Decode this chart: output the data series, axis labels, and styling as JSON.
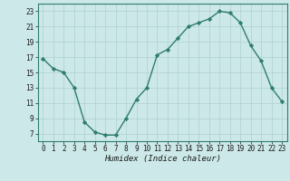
{
  "x": [
    0,
    1,
    2,
    3,
    4,
    5,
    6,
    7,
    8,
    9,
    10,
    11,
    12,
    13,
    14,
    15,
    16,
    17,
    18,
    19,
    20,
    21,
    22,
    23
  ],
  "y": [
    16.8,
    15.5,
    15.0,
    13.0,
    8.5,
    7.2,
    6.8,
    6.8,
    9.0,
    11.5,
    13.0,
    17.3,
    18.0,
    19.5,
    21.0,
    21.5,
    22.0,
    23.0,
    22.8,
    21.5,
    18.5,
    16.5,
    13.0,
    11.2
  ],
  "line_color": "#2e7d6e",
  "bg_color": "#cce8e8",
  "grid_color": "#aed0d0",
  "xlabel": "Humidex (Indice chaleur)",
  "ylim": [
    6,
    24
  ],
  "xlim": [
    -0.5,
    23.5
  ],
  "yticks": [
    7,
    9,
    11,
    13,
    15,
    17,
    19,
    21,
    23
  ],
  "xticks": [
    0,
    1,
    2,
    3,
    4,
    5,
    6,
    7,
    8,
    9,
    10,
    11,
    12,
    13,
    14,
    15,
    16,
    17,
    18,
    19,
    20,
    21,
    22,
    23
  ],
  "marker": "D",
  "markersize": 2.2,
  "linewidth": 1.0,
  "tick_fontsize": 5.5,
  "xlabel_fontsize": 6.5
}
